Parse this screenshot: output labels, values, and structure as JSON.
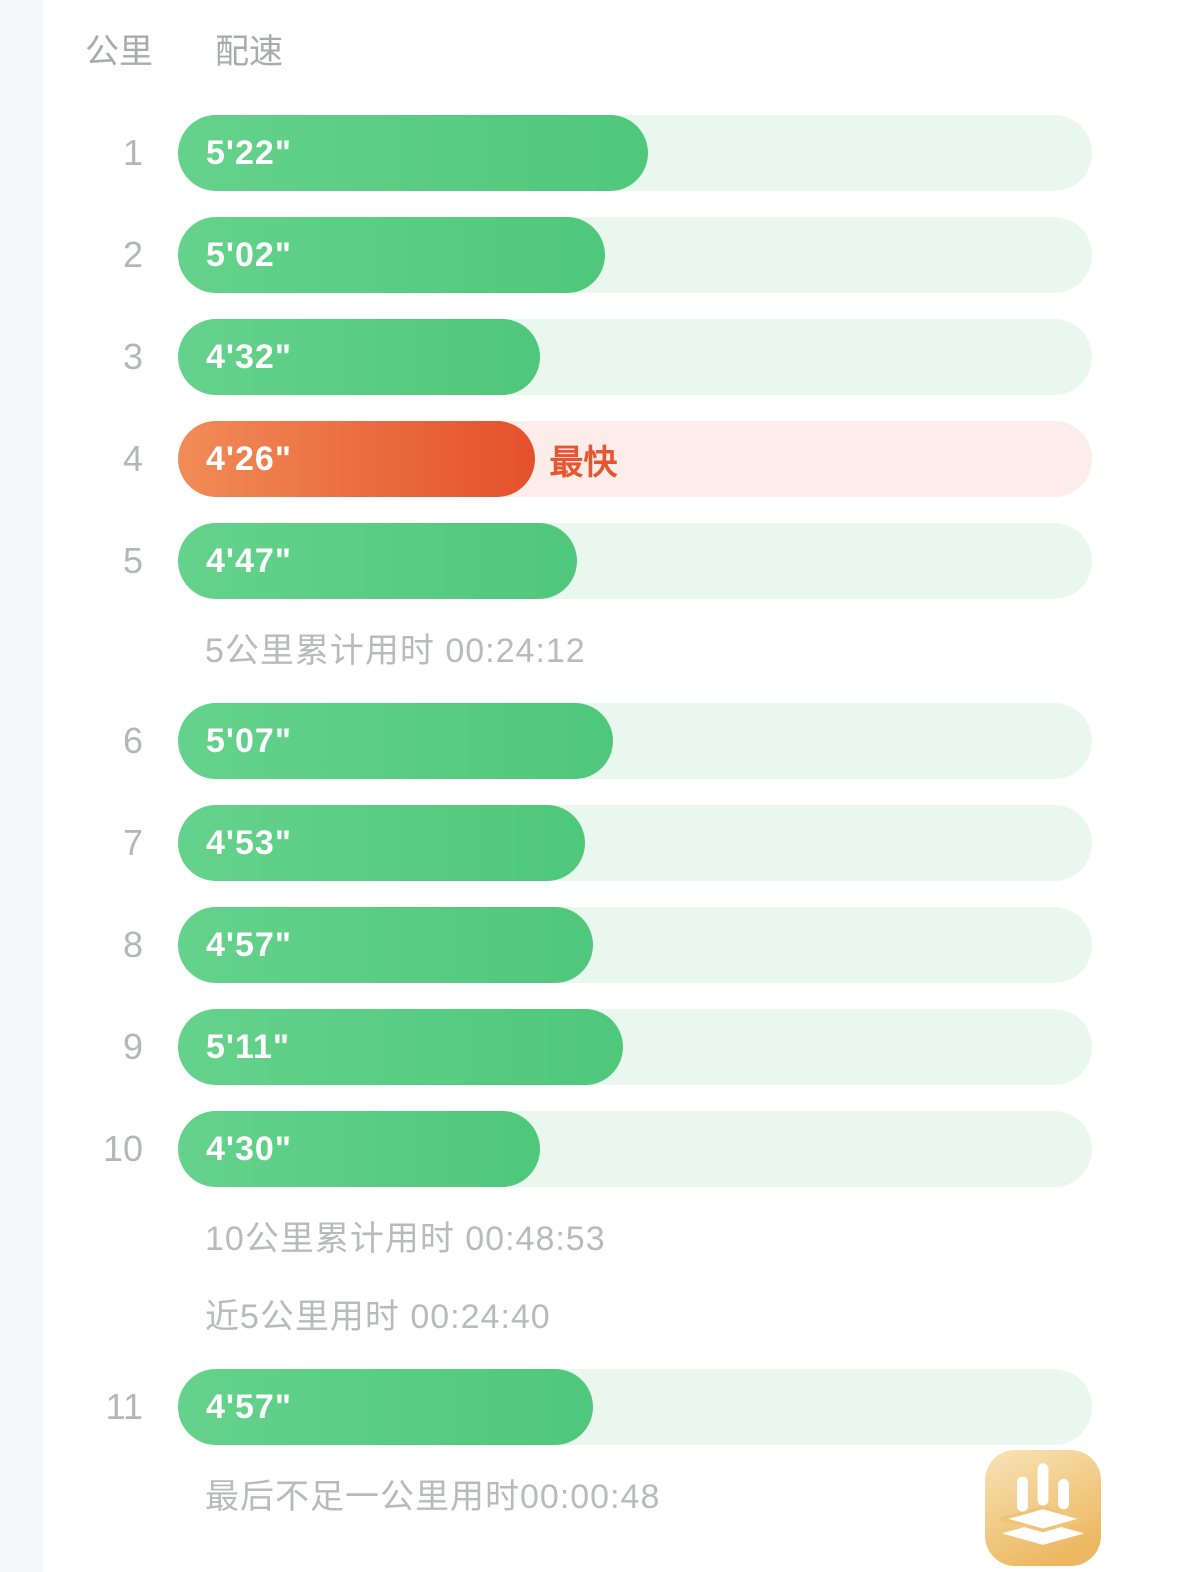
{
  "page": {
    "background": "#ffffff",
    "gutter_color": "#f5f6f8"
  },
  "header": {
    "km_label": "公里",
    "pace_label": "配速"
  },
  "colors": {
    "normal_fill_start": "#65d28c",
    "normal_fill_end": "#4fc87b",
    "normal_track": "#eaf7ef",
    "fastest_fill_start": "#f18c57",
    "fastest_fill_end": "#e5502d",
    "fastest_track": "#fcedea",
    "fastest_label_color": "#e7572f",
    "km_number_color": "#b4b6b8",
    "header_text_color": "#a8aaac",
    "note_text_color": "#b9babc",
    "pace_text_color": "#ffffff",
    "watermark_bg_start": "#f7dda8",
    "watermark_bg_end": "#ecb760"
  },
  "list": {
    "items": [
      {
        "type": "bar",
        "km": "1",
        "pace": "5'22\"",
        "fill_percent": 51.4
      },
      {
        "type": "bar",
        "km": "2",
        "pace": "5'02\"",
        "fill_percent": 46.7
      },
      {
        "type": "bar",
        "km": "3",
        "pace": "4'32\"",
        "fill_percent": 39.6
      },
      {
        "type": "bar",
        "km": "4",
        "pace": "4'26\"",
        "fill_percent": 39.1,
        "highlight": true,
        "badge": "最快"
      },
      {
        "type": "bar",
        "km": "5",
        "pace": "4'47\"",
        "fill_percent": 43.7
      },
      {
        "type": "note",
        "text": "5公里累计用时 00:24:12"
      },
      {
        "type": "bar",
        "km": "6",
        "pace": "5'07\"",
        "fill_percent": 47.6
      },
      {
        "type": "bar",
        "km": "7",
        "pace": "4'53\"",
        "fill_percent": 44.5
      },
      {
        "type": "bar",
        "km": "8",
        "pace": "4'57\"",
        "fill_percent": 45.4
      },
      {
        "type": "bar",
        "km": "9",
        "pace": "5'11\"",
        "fill_percent": 48.7
      },
      {
        "type": "bar",
        "km": "10",
        "pace": "4'30\"",
        "fill_percent": 39.6
      },
      {
        "type": "note",
        "text": "10公里累计用时 00:48:53"
      },
      {
        "type": "note",
        "text": "近5公里用时 00:24:40"
      },
      {
        "type": "bar",
        "km": "11",
        "pace": "4'57\"",
        "fill_percent": 45.4
      },
      {
        "type": "note",
        "text": "最后不足一公里用时00:00:48"
      }
    ]
  },
  "watermark": {
    "icon": "app-logo-bars-and-layers"
  },
  "chart_data": {
    "type": "bar",
    "xlabel": "公里",
    "ylabel": "配速",
    "categories": [
      "1",
      "2",
      "3",
      "4",
      "5",
      "6",
      "7",
      "8",
      "9",
      "10",
      "11"
    ],
    "values_pace": [
      "5'22\"",
      "5'02\"",
      "4'32\"",
      "4'26\"",
      "4'47\"",
      "5'07\"",
      "4'53\"",
      "4'57\"",
      "5'11\"",
      "4'30\"",
      "4'57\""
    ],
    "values_pace_seconds": [
      322,
      302,
      272,
      266,
      287,
      307,
      293,
      297,
      311,
      270,
      297
    ],
    "fastest_index": 3,
    "fastest_label": "最快",
    "annotations": [
      "5公里累计用时 00:24:12",
      "10公里累计用时 00:48:53",
      "近5公里用时 00:24:40",
      "最后不足一公里用时00:00:48"
    ],
    "legend_position": "none",
    "grid": false
  }
}
